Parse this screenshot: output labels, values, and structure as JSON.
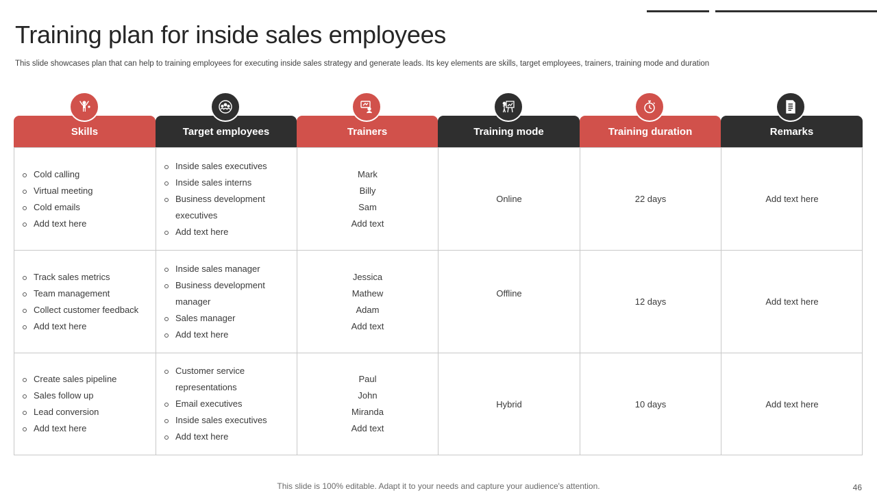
{
  "title": "Training plan for inside sales employees",
  "subtitle": "This slide showcases plan that can help to training employees for executing inside sales strategy and generate leads. Its key elements are skills, target employees, trainers, training mode and duration",
  "colors": {
    "accent_red": "#d1514b",
    "accent_dark": "#2f2f2f"
  },
  "columns": [
    {
      "label": "Skills",
      "icon": "person-arms-up-icon",
      "style": "red"
    },
    {
      "label": "Target employees",
      "icon": "team-target-icon",
      "style": "dark"
    },
    {
      "label": "Trainers",
      "icon": "presenter-icon",
      "style": "red"
    },
    {
      "label": "Training mode",
      "icon": "presentation-board-icon",
      "style": "dark"
    },
    {
      "label": "Training duration",
      "icon": "stopwatch-icon",
      "style": "red"
    },
    {
      "label": "Remarks",
      "icon": "document-icon",
      "style": "dark"
    }
  ],
  "rows": [
    {
      "skills": [
        "Cold calling",
        "Virtual meeting",
        "Cold emails",
        "Add text here"
      ],
      "target_employees": [
        "Inside sales executives",
        "Inside sales interns",
        "Business development executives",
        "Add text here"
      ],
      "trainers": [
        "Mark",
        "Billy",
        "Sam",
        "Add text"
      ],
      "mode": "Online",
      "duration": "22 days",
      "remarks": "Add text here"
    },
    {
      "skills": [
        "Track sales metrics",
        "Team management",
        "Collect customer feedback",
        "Add text here"
      ],
      "target_employees": [
        "Inside sales manager",
        "Business development manager",
        "Sales manager",
        "Add text here"
      ],
      "trainers": [
        "Jessica",
        "Mathew",
        "Adam",
        "Add text"
      ],
      "mode": "Offline",
      "duration": "12 days",
      "remarks": "Add text here"
    },
    {
      "skills": [
        "Create sales pipeline",
        "Sales follow up",
        "Lead conversion",
        "Add text here"
      ],
      "target_employees": [
        "Customer service representations",
        "Email executives",
        "Inside sales executives",
        "Add text here"
      ],
      "trainers": [
        "Paul",
        "John",
        "Miranda",
        "Add text"
      ],
      "mode": "Hybrid",
      "duration": "10 days",
      "remarks": "Add text here"
    }
  ],
  "footer": "This slide is 100% editable. Adapt it to your needs and capture your audience's attention.",
  "page_number": "46"
}
